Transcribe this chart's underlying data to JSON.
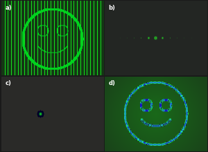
{
  "panel_labels": [
    "a)",
    "b)",
    "c)",
    "d)"
  ],
  "fig_bg": "#1a1a1a",
  "label_color": "#ffffff",
  "label_fontsize": 6,
  "stripe_count": 30,
  "bg_a_color": [
    20,
    55,
    20
  ],
  "bg_b_color": [
    35,
    38,
    35
  ],
  "bg_c_color": [
    42,
    42,
    40
  ],
  "bg_d_color": [
    25,
    65,
    25
  ],
  "green_bright": [
    0,
    255,
    50
  ],
  "green_dim": [
    0,
    120,
    10
  ],
  "green_mid": [
    0,
    200,
    30
  ]
}
